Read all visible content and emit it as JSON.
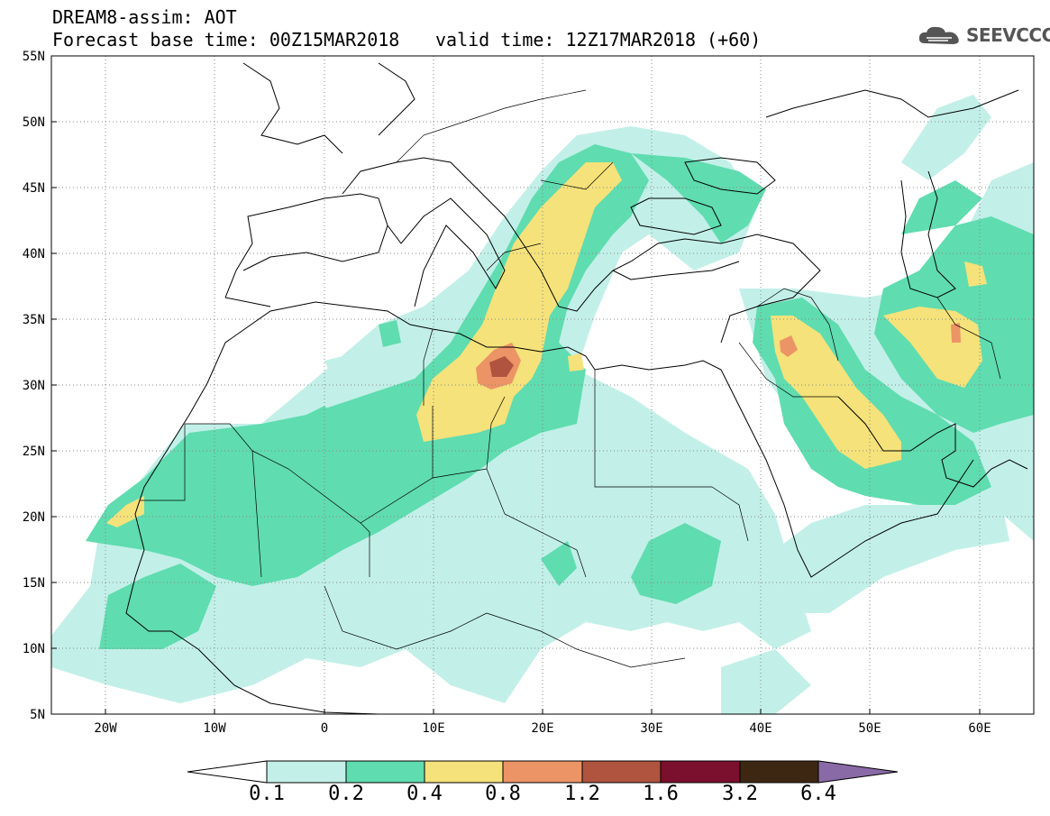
{
  "header": {
    "title": "DREAM8-assim: AOT",
    "base_time": "Forecast base time: 00Z15MAR2018",
    "valid_time": "valid time: 12Z17MAR2018 (+60)"
  },
  "logo": {
    "text": "SEEVCCC",
    "icon": "cloud-icon"
  },
  "map": {
    "lat_labels": [
      "55N",
      "50N",
      "45N",
      "40N",
      "35N",
      "30N",
      "25N",
      "20N",
      "15N",
      "10N",
      "5N"
    ],
    "lon_labels": [
      "20W",
      "10W",
      "0",
      "10E",
      "20E",
      "30E",
      "40E",
      "50E",
      "60E"
    ],
    "lon_range": [
      -25,
      65
    ],
    "lat_range": [
      5,
      55
    ],
    "grid": "dotted"
  },
  "colorbar": {
    "levels": [
      "0.1",
      "0.2",
      "0.4",
      "0.8",
      "1.2",
      "1.6",
      "3.2",
      "6.4"
    ],
    "colors": [
      "#c2f0e8",
      "#5fdcb0",
      "#f5e27a",
      "#ec9466",
      "#b0533f",
      "#7a0f2e",
      "#3d2713",
      "#8a6aa6"
    ]
  }
}
